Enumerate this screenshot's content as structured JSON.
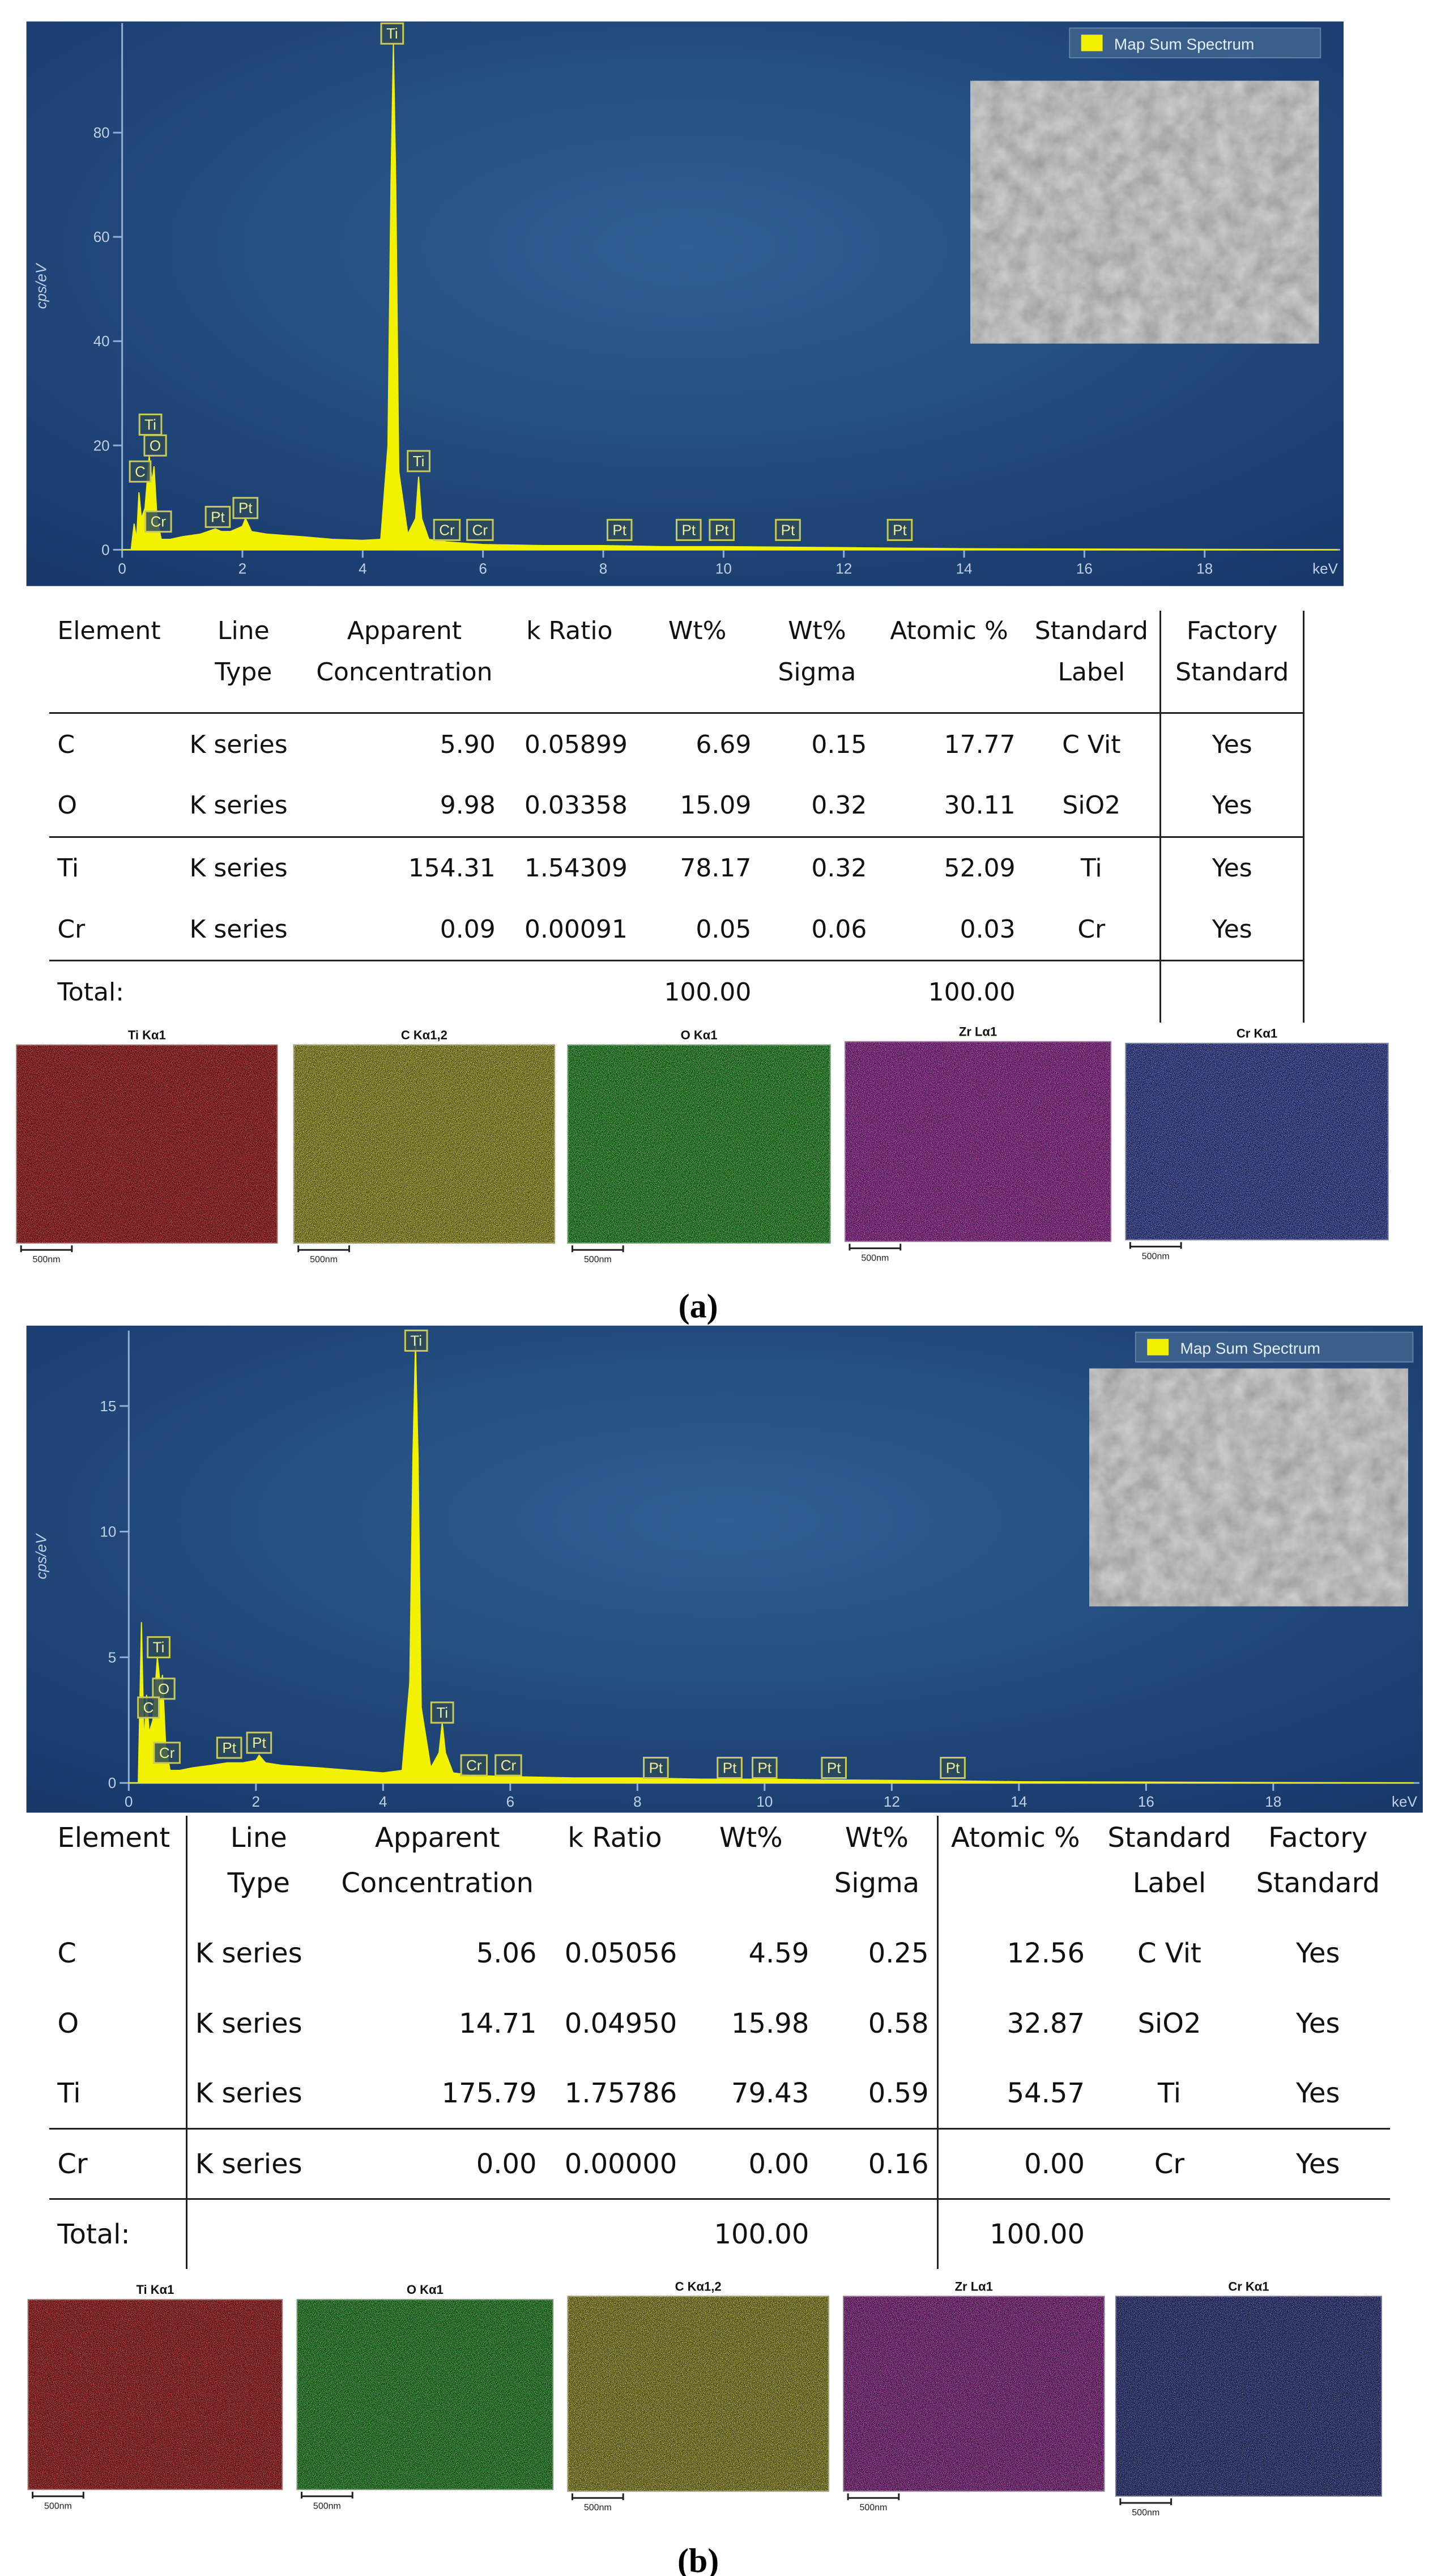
{
  "chart_data": [
    {
      "type": "area",
      "series": [
        {
          "name": "Map Sum Spectrum",
          "color": "#f2f200",
          "values": [
            0,
            0,
            5,
            2,
            11,
            6,
            8,
            18,
            13,
            16,
            6,
            2,
            2,
            2.5,
            3,
            4,
            3.5,
            3.5,
            4.5,
            6,
            3.5,
            3,
            2.5,
            2,
            1.8,
            2,
            20,
            70,
            97,
            70,
            15,
            3,
            6,
            14,
            6,
            2,
            1.5,
            1,
            0.8,
            0.8,
            0.6,
            0.6,
            0.5,
            0.4,
            0.3,
            0.2,
            0
          ]
        }
      ],
      "x": [
        0,
        0.15,
        0.2,
        0.24,
        0.28,
        0.32,
        0.38,
        0.45,
        0.5,
        0.53,
        0.58,
        0.65,
        0.8,
        1.0,
        1.3,
        1.55,
        1.65,
        1.8,
        2.0,
        2.05,
        2.15,
        2.4,
        3.0,
        3.5,
        4.0,
        4.3,
        4.42,
        4.47,
        4.51,
        4.55,
        4.6,
        4.75,
        4.88,
        4.93,
        4.98,
        5.1,
        5.4,
        6.0,
        7.0,
        8.0,
        9.0,
        10.0,
        11.0,
        12.0,
        13.0,
        14.0,
        20.2
      ],
      "xlim": [
        0,
        20.2
      ],
      "xticks": [
        0,
        2,
        4,
        6,
        8,
        10,
        12,
        14,
        16,
        18
      ],
      "x_label": "keV",
      "ylim": [
        0,
        101
      ],
      "yticks": [
        0,
        20,
        40,
        60,
        80
      ],
      "y_label": "cps/eV",
      "legend": "upper right",
      "annotations": [
        {
          "text": "Ti",
          "x": 4.49,
          "y": 99
        },
        {
          "text": "Ti",
          "x": 0.47,
          "y": 24
        },
        {
          "text": "O",
          "x": 0.55,
          "y": 20
        },
        {
          "text": "C",
          "x": 0.3,
          "y": 15
        },
        {
          "text": "Cr",
          "x": 0.6,
          "y": 5.4
        },
        {
          "text": "Pt",
          "x": 1.59,
          "y": 6.3
        },
        {
          "text": "Pt",
          "x": 2.05,
          "y": 8
        },
        {
          "text": "Ti",
          "x": 4.93,
          "y": 17
        },
        {
          "text": "Cr",
          "x": 5.4,
          "y": 3.8
        },
        {
          "text": "Cr",
          "x": 5.95,
          "y": 3.8
        },
        {
          "text": "Pt",
          "x": 8.27,
          "y": 3.8
        },
        {
          "text": "Pt",
          "x": 9.42,
          "y": 3.8
        },
        {
          "text": "Pt",
          "x": 9.97,
          "y": 3.8
        },
        {
          "text": "Pt",
          "x": 11.07,
          "y": 3.8
        },
        {
          "text": "Pt",
          "x": 12.93,
          "y": 3.8
        }
      ]
    },
    {
      "type": "area",
      "series": [
        {
          "name": "Map Sum Spectrum",
          "color": "#f2f200",
          "values": [
            0,
            0,
            6.4,
            1.5,
            3.5,
            2,
            2.5,
            5,
            3.8,
            4.3,
            1.5,
            0.5,
            0.5,
            0.6,
            0.7,
            0.8,
            0.8,
            0.8,
            0.9,
            1.1,
            0.8,
            0.7,
            0.6,
            0.5,
            0.4,
            0.5,
            4,
            13,
            17.5,
            13,
            3,
            0.6,
            1.2,
            2.4,
            1.2,
            0.4,
            0.3,
            0.25,
            0.2,
            0.2,
            0.15,
            0.15,
            0.12,
            0.1,
            0.08,
            0.05,
            0
          ]
        }
      ],
      "x": [
        0,
        0.15,
        0.2,
        0.24,
        0.28,
        0.32,
        0.38,
        0.45,
        0.5,
        0.53,
        0.58,
        0.65,
        0.8,
        1.0,
        1.3,
        1.55,
        1.65,
        1.8,
        2.0,
        2.05,
        2.15,
        2.4,
        3.0,
        3.5,
        4.0,
        4.3,
        4.42,
        4.47,
        4.51,
        4.55,
        4.6,
        4.75,
        4.88,
        4.93,
        4.98,
        5.1,
        5.4,
        6.0,
        7.0,
        8.0,
        9.0,
        10.0,
        11.0,
        12.0,
        13.0,
        14.0,
        20.2
      ],
      "xlim": [
        0,
        20.3
      ],
      "xticks": [
        0,
        2,
        4,
        6,
        8,
        10,
        12,
        14,
        16,
        18
      ],
      "x_label": "keV",
      "ylim": [
        0,
        18
      ],
      "yticks": [
        0,
        5,
        10,
        15
      ],
      "y_label": "cps/eV",
      "legend": "upper right",
      "annotations": [
        {
          "text": "Ti",
          "x": 4.52,
          "y": 17.6
        },
        {
          "text": "Ti",
          "x": 0.47,
          "y": 5.4
        },
        {
          "text": "O",
          "x": 0.55,
          "y": 3.75
        },
        {
          "text": "C",
          "x": 0.31,
          "y": 3.0
        },
        {
          "text": "Cr",
          "x": 0.6,
          "y": 1.2
        },
        {
          "text": "Pt",
          "x": 1.58,
          "y": 1.4
        },
        {
          "text": "Pt",
          "x": 2.05,
          "y": 1.6
        },
        {
          "text": "Ti",
          "x": 4.93,
          "y": 2.8
        },
        {
          "text": "Cr",
          "x": 5.43,
          "y": 0.7
        },
        {
          "text": "Cr",
          "x": 5.97,
          "y": 0.7
        },
        {
          "text": "Pt",
          "x": 8.29,
          "y": 0.6
        },
        {
          "text": "Pt",
          "x": 9.45,
          "y": 0.6
        },
        {
          "text": "Pt",
          "x": 10.0,
          "y": 0.6
        },
        {
          "text": "Pt",
          "x": 11.09,
          "y": 0.6
        },
        {
          "text": "Pt",
          "x": 12.96,
          "y": 0.6
        }
      ]
    }
  ],
  "tables": [
    {
      "header": [
        [
          "Element"
        ],
        [
          "Line",
          "Type"
        ],
        [
          "Apparent",
          "Concentration"
        ],
        [
          "k Ratio"
        ],
        [
          "Wt%"
        ],
        [
          "Wt%",
          "Sigma"
        ],
        [
          "Atomic %"
        ],
        [
          "Standard",
          "Label"
        ],
        [
          "Factory",
          "Standard"
        ]
      ],
      "rows": [
        [
          "C",
          "K series",
          "5.90",
          "0.05899",
          "6.69",
          "0.15",
          "17.77",
          "C Vit",
          "Yes"
        ],
        [
          "O",
          "K series",
          "9.98",
          "0.03358",
          "15.09",
          "0.32",
          "30.11",
          "SiO2",
          "Yes"
        ],
        [
          "Ti",
          "K series",
          "154.31",
          "1.54309",
          "78.17",
          "0.32",
          "52.09",
          "Ti",
          "Yes"
        ],
        [
          "Cr",
          "K series",
          "0.09",
          "0.00091",
          "0.05",
          "0.06",
          "0.03",
          "Cr",
          "Yes"
        ],
        [
          "Total:",
          null,
          null,
          null,
          "100.00",
          null,
          "100.00",
          null,
          null
        ]
      ]
    },
    {
      "header": [
        [
          "Element"
        ],
        [
          "Line",
          "Type"
        ],
        [
          "Apparent",
          "Concentration"
        ],
        [
          "k Ratio"
        ],
        [
          "Wt%"
        ],
        [
          "Wt%",
          "Sigma"
        ],
        [
          "Atomic %"
        ],
        [
          "Standard",
          "Label"
        ],
        [
          "Factory",
          "Standard"
        ]
      ],
      "rows": [
        [
          "C",
          "K series",
          "5.06",
          "0.05056",
          "4.59",
          "0.25",
          "12.56",
          "C Vit",
          "Yes"
        ],
        [
          "O",
          "K series",
          "14.71",
          "0.04950",
          "15.98",
          "0.58",
          "32.87",
          "SiO2",
          "Yes"
        ],
        [
          "Ti",
          "K series",
          "175.79",
          "1.75786",
          "79.43",
          "0.59",
          "54.57",
          "Ti",
          "Yes"
        ],
        [
          "Cr",
          "K series",
          "0.00",
          "0.00000",
          "0.00",
          "0.16",
          "0.00",
          "Cr",
          "Yes"
        ],
        [
          "Total:",
          null,
          null,
          null,
          "100.00",
          null,
          "100.00",
          null,
          null
        ]
      ]
    }
  ],
  "maps": [
    [
      {
        "title": "Ti Kα1",
        "scale": "500nm",
        "color": "#d01818"
      },
      {
        "title": "C Kα1,2",
        "scale": "500nm",
        "color": "#c8c020"
      },
      {
        "title": "O Kα1",
        "scale": "500nm",
        "color": "#22b022"
      },
      {
        "title": "Zr Lα1",
        "scale": "500nm",
        "color": "#b020b0"
      },
      {
        "title": "Cr Kα1",
        "scale": "500nm",
        "color": "#3040c0"
      }
    ],
    [
      {
        "title": "Ti Kα1",
        "scale": "500nm",
        "color": "#c81818"
      },
      {
        "title": "O Kα1",
        "scale": "500nm",
        "color": "#20a020"
      },
      {
        "title": "C Kα1,2",
        "scale": "500nm",
        "color": "#b0a820"
      },
      {
        "title": "Zr Lα1",
        "scale": "500nm",
        "color": "#9a209a"
      },
      {
        "title": "Cr Kα1",
        "scale": "500nm",
        "color": "#283090"
      }
    ]
  ],
  "captions": [
    "(a)",
    "(b)"
  ]
}
